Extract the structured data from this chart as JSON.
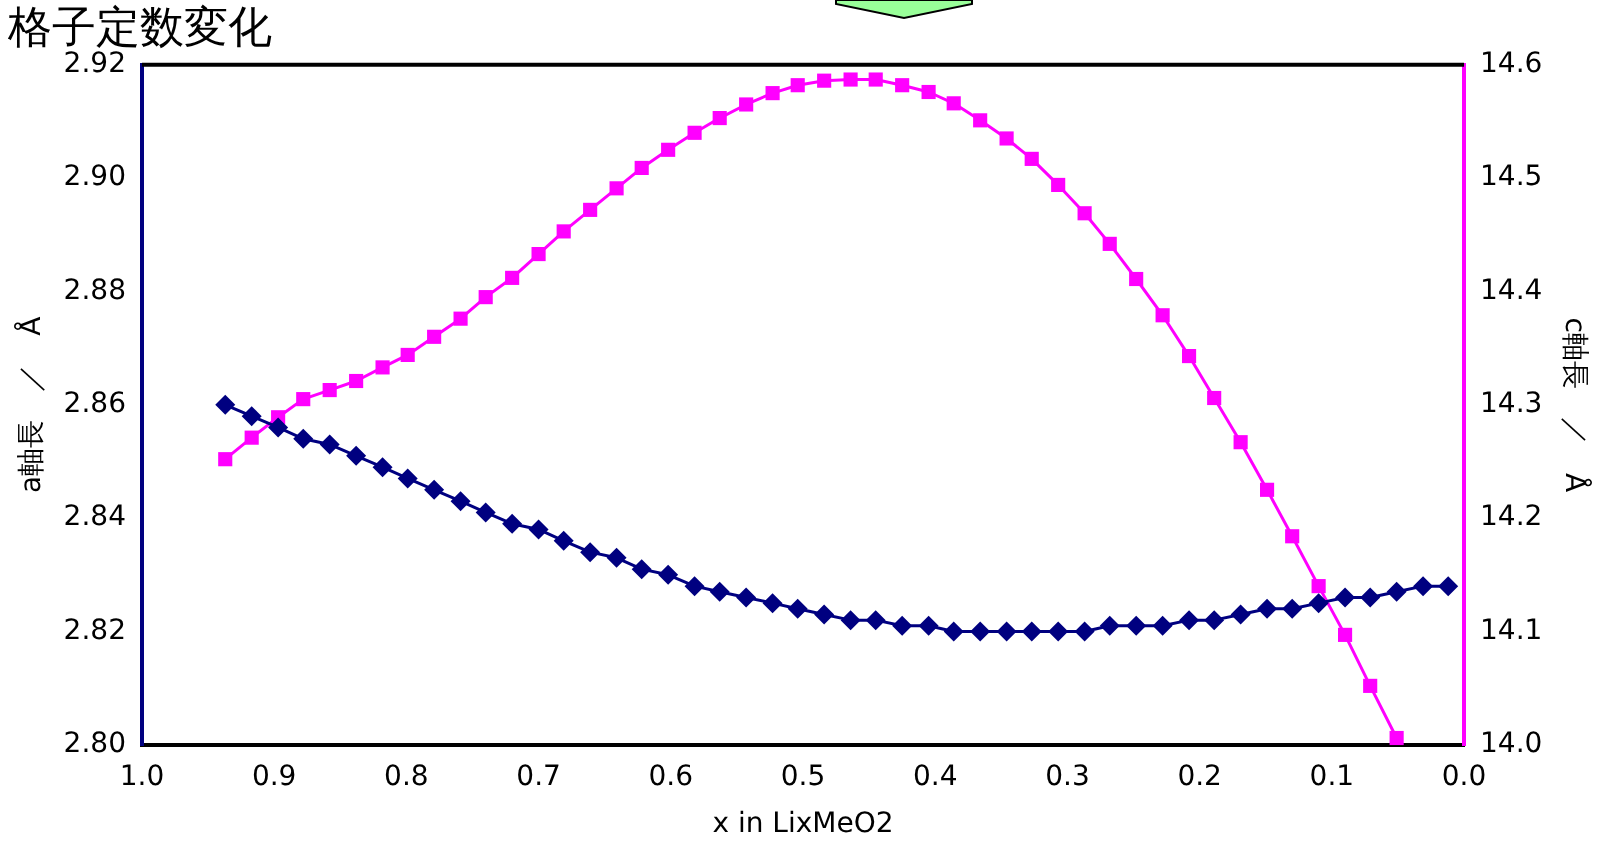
{
  "chart_data": {
    "type": "line",
    "title": "格子定数変化",
    "xlabel": "x in LixMeO2",
    "ylabel": "a軸長　／　Å",
    "y2label": "c軸長　／　Å",
    "x": [
      0.937,
      0.917,
      0.897,
      0.878,
      0.858,
      0.838,
      0.818,
      0.799,
      0.779,
      0.759,
      0.74,
      0.72,
      0.7,
      0.681,
      0.661,
      0.641,
      0.622,
      0.602,
      0.582,
      0.563,
      0.543,
      0.523,
      0.504,
      0.484,
      0.464,
      0.445,
      0.425,
      0.405,
      0.386,
      0.366,
      0.346,
      0.327,
      0.307,
      0.287,
      0.268,
      0.248,
      0.228,
      0.208,
      0.189,
      0.169,
      0.149,
      0.13,
      0.11,
      0.09,
      0.071,
      0.051,
      0.031,
      0.012
    ],
    "series": [
      {
        "color": "#000080",
        "marker": "diamond",
        "values": [
          2.86,
          2.858,
          2.856,
          2.854,
          2.853,
          2.851,
          2.849,
          2.847,
          2.845,
          2.843,
          2.841,
          2.839,
          2.838,
          2.836,
          2.834,
          2.833,
          2.831,
          2.83,
          2.828,
          2.827,
          2.826,
          2.825,
          2.824,
          2.823,
          2.822,
          2.822,
          2.821,
          2.821,
          2.82,
          2.82,
          2.82,
          2.82,
          2.82,
          2.82,
          2.821,
          2.821,
          2.821,
          2.822,
          2.822,
          2.823,
          2.824,
          2.824,
          2.825,
          2.826,
          2.826,
          2.827,
          2.828,
          2.828
        ]
      },
      {
        "color": "#ff00ff",
        "marker": "square",
        "axis": "y2",
        "x": [
          0.937,
          0.917,
          0.897,
          0.878,
          0.858,
          0.838,
          0.818,
          0.799,
          0.779,
          0.759,
          0.74,
          0.72,
          0.7,
          0.681,
          0.661,
          0.641,
          0.622,
          0.602,
          0.582,
          0.563,
          0.543,
          0.523,
          0.504,
          0.484,
          0.464,
          0.445,
          0.425,
          0.405,
          0.386,
          0.366,
          0.346,
          0.327,
          0.307,
          0.287,
          0.268,
          0.248,
          0.228,
          0.208,
          0.189,
          0.169,
          0.149,
          0.13,
          0.11,
          0.09,
          0.071,
          0.051
        ],
        "values": [
          14.252,
          14.271,
          14.289,
          14.305,
          14.313,
          14.321,
          14.333,
          14.344,
          14.36,
          14.376,
          14.395,
          14.412,
          14.433,
          14.453,
          14.472,
          14.491,
          14.509,
          14.525,
          14.54,
          14.553,
          14.565,
          14.575,
          14.582,
          14.586,
          14.587,
          14.587,
          14.582,
          14.576,
          14.566,
          14.551,
          14.535,
          14.517,
          14.494,
          14.469,
          14.442,
          14.411,
          14.379,
          14.343,
          14.306,
          14.267,
          14.225,
          14.184,
          14.14,
          14.097,
          14.052,
          14.006
        ]
      }
    ],
    "xlim": [
      1.0,
      0.0
    ],
    "xticks": [
      {
        "value": 1.0,
        "label": "1.0"
      },
      0.9,
      0.8,
      0.7,
      0.6,
      0.5,
      0.4,
      0.3,
      0.2,
      0.1,
      {
        "value": 0.0,
        "label": "0.0"
      }
    ],
    "ylim": [
      2.8,
      2.92
    ],
    "yticks": [
      {
        "value": 2.8,
        "label": "2.80"
      },
      2.82,
      2.84,
      2.86,
      2.88,
      {
        "value": 2.9,
        "label": "2.90"
      },
      2.92
    ],
    "y2lim": [
      14.0,
      14.6
    ],
    "y2ticks": [
      {
        "value": 14.0,
        "label": "14.0"
      },
      14.1,
      14.2,
      14.3,
      14.4,
      14.5,
      14.6
    ],
    "grid": false,
    "legend": false
  }
}
